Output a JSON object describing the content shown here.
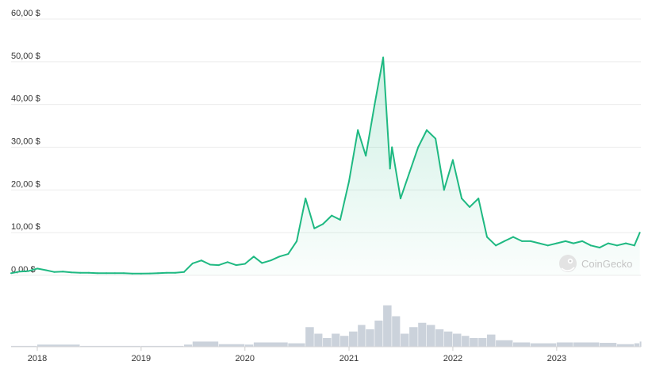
{
  "chart_data": {
    "type": "line",
    "title": "",
    "xlabel": "",
    "ylabel": "",
    "ylim": [
      0,
      60
    ],
    "x_ticks": [
      "2018",
      "2019",
      "2020",
      "2021",
      "2022",
      "2023"
    ],
    "y_ticks": [
      {
        "value": 0,
        "label": "0,00 $"
      },
      {
        "value": 10,
        "label": "10,00 $"
      },
      {
        "value": 20,
        "label": "20,00 $"
      },
      {
        "value": 30,
        "label": "30,00 $"
      },
      {
        "value": 40,
        "label": "40,00 $"
      },
      {
        "value": 50,
        "label": "50,00 $"
      },
      {
        "value": 60,
        "label": "60,00 $"
      }
    ],
    "grid": true,
    "colors": {
      "line": "#1fb982",
      "area": "#1fb982",
      "volume": "#b9c3cf",
      "grid": "#ececec"
    },
    "series": [
      {
        "values": [
          [
            "2017-10-01",
            0.5
          ],
          [
            "2017-11-01",
            0.9
          ],
          [
            "2017-12-01",
            1.0
          ],
          [
            "2018-01-01",
            1.6
          ],
          [
            "2018-02-01",
            1.2
          ],
          [
            "2018-03-01",
            0.8
          ],
          [
            "2018-04-01",
            0.9
          ],
          [
            "2018-05-01",
            0.7
          ],
          [
            "2018-06-01",
            0.6
          ],
          [
            "2018-07-01",
            0.6
          ],
          [
            "2018-08-01",
            0.5
          ],
          [
            "2018-09-01",
            0.5
          ],
          [
            "2018-10-01",
            0.5
          ],
          [
            "2018-11-01",
            0.5
          ],
          [
            "2018-12-01",
            0.4
          ],
          [
            "2019-01-01",
            0.4
          ],
          [
            "2019-02-01",
            0.45
          ],
          [
            "2019-03-01",
            0.5
          ],
          [
            "2019-04-01",
            0.6
          ],
          [
            "2019-05-01",
            0.6
          ],
          [
            "2019-06-01",
            0.8
          ],
          [
            "2019-07-01",
            2.8
          ],
          [
            "2019-08-01",
            3.5
          ],
          [
            "2019-09-01",
            2.5
          ],
          [
            "2019-10-01",
            2.4
          ],
          [
            "2019-11-01",
            3.1
          ],
          [
            "2019-12-01",
            2.4
          ],
          [
            "2020-01-01",
            2.7
          ],
          [
            "2020-02-01",
            4.4
          ],
          [
            "2020-03-01",
            2.9
          ],
          [
            "2020-04-01",
            3.5
          ],
          [
            "2020-05-01",
            4.4
          ],
          [
            "2020-06-01",
            5.0
          ],
          [
            "2020-07-01",
            8.0
          ],
          [
            "2020-08-01",
            18.0
          ],
          [
            "2020-09-01",
            11.0
          ],
          [
            "2020-10-01",
            12.0
          ],
          [
            "2020-11-01",
            14.0
          ],
          [
            "2020-12-01",
            13.0
          ],
          [
            "2021-01-01",
            22.0
          ],
          [
            "2021-02-01",
            34.0
          ],
          [
            "2021-03-01",
            28.0
          ],
          [
            "2021-04-01",
            40.0
          ],
          [
            "2021-05-01",
            51.0
          ],
          [
            "2021-05-25",
            25.0
          ],
          [
            "2021-06-01",
            30.0
          ],
          [
            "2021-07-01",
            18.0
          ],
          [
            "2021-08-01",
            24.0
          ],
          [
            "2021-09-01",
            30.0
          ],
          [
            "2021-10-01",
            34.0
          ],
          [
            "2021-11-01",
            32.0
          ],
          [
            "2021-12-01",
            20.0
          ],
          [
            "2022-01-01",
            27.0
          ],
          [
            "2022-02-01",
            18.0
          ],
          [
            "2022-03-01",
            16.0
          ],
          [
            "2022-04-01",
            18.0
          ],
          [
            "2022-05-01",
            9.0
          ],
          [
            "2022-06-01",
            7.0
          ],
          [
            "2022-07-01",
            8.0
          ],
          [
            "2022-08-01",
            9.0
          ],
          [
            "2022-09-01",
            8.0
          ],
          [
            "2022-10-01",
            8.0
          ],
          [
            "2022-11-01",
            7.5
          ],
          [
            "2022-12-01",
            7.0
          ],
          [
            "2023-01-01",
            7.5
          ],
          [
            "2023-02-01",
            8.0
          ],
          [
            "2023-03-01",
            7.5
          ],
          [
            "2023-04-01",
            8.0
          ],
          [
            "2023-05-01",
            7.0
          ],
          [
            "2023-06-01",
            6.5
          ],
          [
            "2023-07-01",
            7.5
          ],
          [
            "2023-08-01",
            7.0
          ],
          [
            "2023-09-01",
            7.5
          ],
          [
            "2023-10-01",
            7.0
          ],
          [
            "2023-10-20",
            10.0
          ]
        ]
      }
    ],
    "volume": {
      "values": [
        [
          "2017-10-01",
          0.02
        ],
        [
          "2018-01-01",
          0.05
        ],
        [
          "2018-06-01",
          0.02
        ],
        [
          "2019-01-01",
          0.02
        ],
        [
          "2019-06-01",
          0.05
        ],
        [
          "2019-07-01",
          0.12
        ],
        [
          "2019-10-01",
          0.06
        ],
        [
          "2020-01-01",
          0.05
        ],
        [
          "2020-02-01",
          0.1
        ],
        [
          "2020-06-01",
          0.08
        ],
        [
          "2020-08-01",
          0.45
        ],
        [
          "2020-09-01",
          0.3
        ],
        [
          "2020-10-01",
          0.2
        ],
        [
          "2020-11-01",
          0.3
        ],
        [
          "2020-12-01",
          0.25
        ],
        [
          "2021-01-01",
          0.35
        ],
        [
          "2021-02-01",
          0.5
        ],
        [
          "2021-03-01",
          0.4
        ],
        [
          "2021-04-01",
          0.6
        ],
        [
          "2021-05-01",
          0.95
        ],
        [
          "2021-06-01",
          0.7
        ],
        [
          "2021-07-01",
          0.3
        ],
        [
          "2021-08-01",
          0.45
        ],
        [
          "2021-09-01",
          0.55
        ],
        [
          "2021-10-01",
          0.5
        ],
        [
          "2021-11-01",
          0.4
        ],
        [
          "2021-12-01",
          0.35
        ],
        [
          "2022-01-01",
          0.3
        ],
        [
          "2022-02-01",
          0.25
        ],
        [
          "2022-03-01",
          0.2
        ],
        [
          "2022-04-01",
          0.2
        ],
        [
          "2022-05-01",
          0.28
        ],
        [
          "2022-06-01",
          0.15
        ],
        [
          "2022-08-01",
          0.1
        ],
        [
          "2022-10-01",
          0.08
        ],
        [
          "2023-01-01",
          0.1
        ],
        [
          "2023-03-01",
          0.1
        ],
        [
          "2023-06-01",
          0.09
        ],
        [
          "2023-08-01",
          0.06
        ],
        [
          "2023-10-01",
          0.08
        ],
        [
          "2023-10-20",
          0.12
        ]
      ]
    }
  },
  "watermark": {
    "text": "CoinGecko",
    "icon": "coingecko-logo-icon"
  }
}
